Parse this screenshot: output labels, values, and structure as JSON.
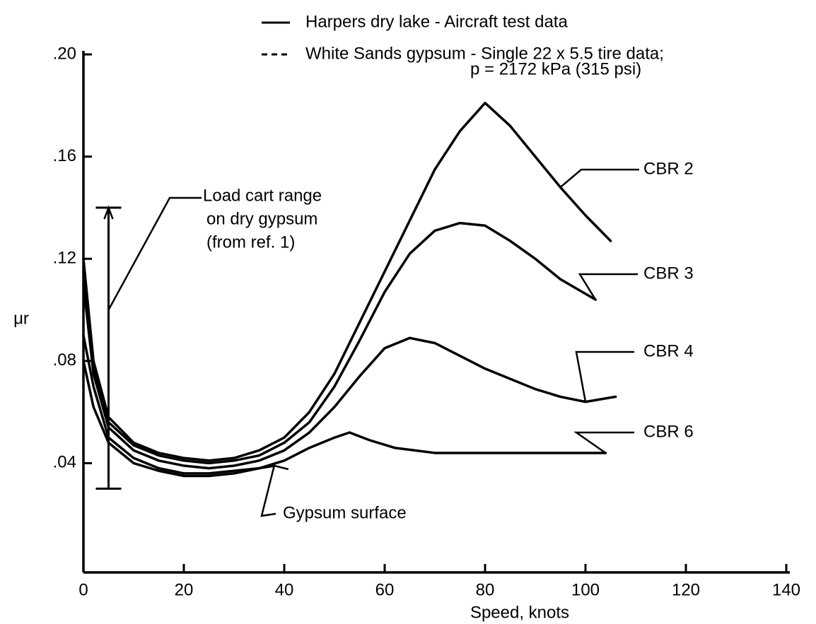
{
  "chart_data": {
    "type": "line",
    "xlabel": "Speed, knots",
    "ylabel": "μr",
    "legend": [
      {
        "dash": false,
        "lines": [
          "Harpers dry lake - Aircraft test data"
        ]
      },
      {
        "dash": true,
        "lines": [
          "White Sands gypsum - Single 22 x 5.5 tire data;",
          "p = 2172 kPa (315 psi)"
        ]
      }
    ],
    "xlim": [
      0,
      140
    ],
    "ylim": [
      0,
      0.2
    ],
    "xticks": [
      0,
      20,
      40,
      60,
      80,
      100,
      120,
      140
    ],
    "yticks": [
      {
        "value": 0.04,
        "label": ".04"
      },
      {
        "value": 0.08,
        "label": ".08"
      },
      {
        "value": 0.12,
        "label": ".12"
      },
      {
        "value": 0.16,
        "label": ".16"
      },
      {
        "value": 0.2,
        "label": ".20"
      }
    ],
    "color": "#000000",
    "series": [
      {
        "name": "CBR 2",
        "dash": false,
        "x": [
          0,
          2,
          5,
          10,
          15,
          20,
          25,
          30,
          35,
          40,
          45,
          50,
          55,
          60,
          65,
          70,
          75,
          80,
          85,
          90,
          95,
          100,
          105
        ],
        "values": [
          0.12,
          0.08,
          0.058,
          0.048,
          0.044,
          0.042,
          0.041,
          0.042,
          0.045,
          0.05,
          0.06,
          0.075,
          0.095,
          0.115,
          0.135,
          0.155,
          0.17,
          0.181,
          0.172,
          0.16,
          0.148,
          0.137,
          0.127
        ]
      },
      {
        "name": "CBR 3",
        "dash": false,
        "x": [
          0,
          2,
          5,
          10,
          15,
          20,
          25,
          30,
          35,
          40,
          45,
          50,
          55,
          60,
          65,
          70,
          75,
          80,
          85,
          90,
          95,
          102
        ],
        "values": [
          0.115,
          0.078,
          0.056,
          0.047,
          0.043,
          0.041,
          0.04,
          0.041,
          0.043,
          0.048,
          0.056,
          0.07,
          0.088,
          0.107,
          0.122,
          0.131,
          0.134,
          0.133,
          0.127,
          0.12,
          0.112,
          0.104
        ]
      },
      {
        "name": "CBR 4",
        "dash": false,
        "x": [
          0,
          2,
          5,
          10,
          15,
          20,
          25,
          30,
          35,
          40,
          45,
          50,
          55,
          60,
          65,
          70,
          75,
          80,
          85,
          90,
          95,
          100,
          106
        ],
        "values": [
          0.11,
          0.075,
          0.054,
          0.045,
          0.041,
          0.039,
          0.038,
          0.039,
          0.041,
          0.045,
          0.052,
          0.062,
          0.074,
          0.085,
          0.089,
          0.087,
          0.082,
          0.077,
          0.073,
          0.069,
          0.066,
          0.064,
          0.066
        ]
      },
      {
        "name": "CBR 6",
        "dash": false,
        "x": [
          0,
          2,
          5,
          10,
          15,
          20,
          25,
          30,
          35,
          40,
          45,
          50,
          53,
          57,
          62,
          70,
          80,
          90,
          104
        ],
        "values": [
          0.09,
          0.07,
          0.05,
          0.042,
          0.038,
          0.036,
          0.036,
          0.037,
          0.038,
          0.041,
          0.046,
          0.05,
          0.052,
          0.049,
          0.046,
          0.044,
          0.044,
          0.044,
          0.044
        ]
      },
      {
        "name": "Gypsum surface",
        "dash": false,
        "x": [
          0,
          2,
          5,
          10,
          15,
          20,
          25,
          30,
          35,
          38
        ],
        "values": [
          0.08,
          0.062,
          0.048,
          0.04,
          0.037,
          0.035,
          0.035,
          0.036,
          0.038,
          0.039
        ]
      }
    ],
    "range_bar": {
      "lines": [
        "Load cart range",
        "on dry gypsum",
        "(from ref. 1)"
      ],
      "x": 5,
      "low": 0.03,
      "high": 0.14
    }
  }
}
